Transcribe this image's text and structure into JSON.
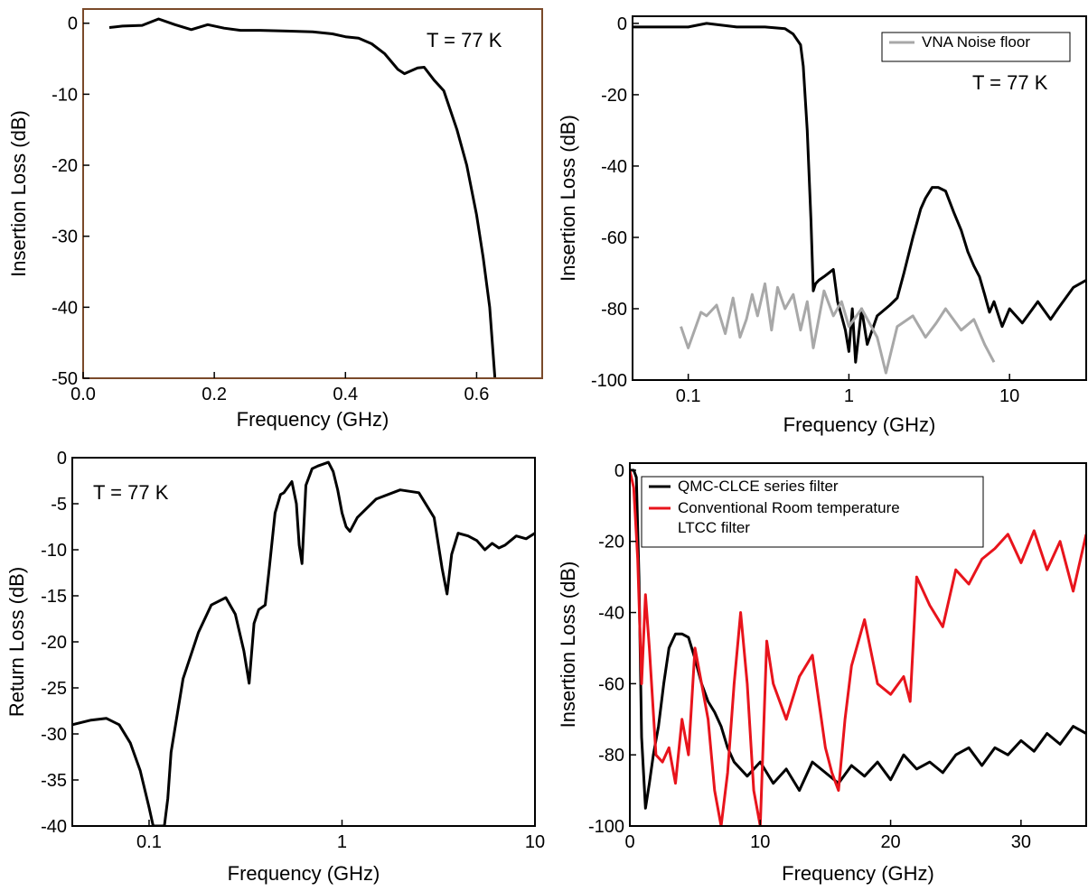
{
  "chart_data": [
    {
      "type": "line",
      "panel": "top-left",
      "xlabel": "Frequency (GHz)",
      "ylabel": "Insertion Loss (dB)",
      "xscale": "linear",
      "xlim": [
        0.0,
        0.7
      ],
      "ylim": [
        -50,
        2
      ],
      "xticks": [
        0.0,
        0.2,
        0.4,
        0.6
      ],
      "xtick_labels": [
        "0.0",
        "0.2",
        "0.4",
        "0.6"
      ],
      "yticks": [
        0,
        -10,
        -20,
        -30,
        -40,
        -50
      ],
      "ytick_labels": [
        "0",
        "-10",
        "-20",
        "-30",
        "-40",
        "-50"
      ],
      "annotation": "T = 77 K",
      "frame_color": "#7a4a2a",
      "series": [
        {
          "color": "#000000",
          "x": [
            0.04,
            0.06,
            0.09,
            0.115,
            0.14,
            0.165,
            0.19,
            0.215,
            0.24,
            0.27,
            0.31,
            0.35,
            0.38,
            0.4,
            0.42,
            0.44,
            0.46,
            0.48,
            0.49,
            0.51,
            0.52,
            0.535,
            0.55,
            0.57,
            0.585,
            0.6,
            0.61,
            0.62,
            0.628
          ],
          "y": [
            -0.6,
            -0.4,
            -0.3,
            0.6,
            -0.2,
            -0.9,
            -0.2,
            -0.7,
            -1.0,
            -1.0,
            -1.1,
            -1.2,
            -1.5,
            -1.9,
            -2.1,
            -2.9,
            -4.3,
            -6.5,
            -7.1,
            -6.3,
            -6.2,
            -8.0,
            -9.5,
            -15.0,
            -20.0,
            -27.0,
            -33.0,
            -40.0,
            -50.0
          ]
        }
      ]
    },
    {
      "type": "line",
      "panel": "top-right",
      "xlabel": "Frequency (GHz)",
      "ylabel": "Insertion Loss (dB)",
      "xscale": "log",
      "xlim": [
        0.045,
        30
      ],
      "ylim": [
        -100,
        2
      ],
      "xticks": [
        0.1,
        1,
        10
      ],
      "xtick_labels": [
        "0.1",
        "1",
        "10"
      ],
      "yticks": [
        0,
        -20,
        -40,
        -60,
        -80,
        -100
      ],
      "ytick_labels": [
        "0",
        "-20",
        "-40",
        "-60",
        "-80",
        "-100"
      ],
      "annotation": "T = 77 K",
      "legend": "top-right",
      "series": [
        {
          "name": "",
          "color": "#000000",
          "x": [
            0.045,
            0.1,
            0.13,
            0.2,
            0.3,
            0.4,
            0.45,
            0.5,
            0.52,
            0.55,
            0.58,
            0.6,
            0.62,
            0.65,
            0.7,
            0.8,
            0.85,
            0.9,
            0.95,
            1.0,
            1.05,
            1.1,
            1.2,
            1.3,
            1.5,
            1.8,
            2.0,
            2.2,
            2.5,
            2.8,
            3.0,
            3.3,
            3.6,
            4.0,
            4.5,
            5.0,
            5.5,
            6.0,
            6.5,
            7.0,
            7.5,
            8.0,
            9.0,
            10,
            12,
            15,
            18,
            20,
            25,
            30
          ],
          "y": [
            -1,
            -1,
            0,
            -1,
            -1,
            -1.5,
            -3,
            -6,
            -12,
            -30,
            -55,
            -75,
            -73,
            -72,
            -71,
            -69,
            -78,
            -82,
            -86,
            -92,
            -80,
            -95,
            -80,
            -90,
            -82,
            -79,
            -77,
            -70,
            -60,
            -52,
            -49,
            -46,
            -46,
            -47,
            -53,
            -58,
            -64,
            -68,
            -71,
            -76,
            -81,
            -78,
            -85,
            -80,
            -84,
            -78,
            -83,
            -80,
            -74,
            -72
          ]
        },
        {
          "name": "VNA Noise floor",
          "color": "#a8a8a8",
          "x": [
            0.09,
            0.1,
            0.12,
            0.13,
            0.15,
            0.17,
            0.19,
            0.21,
            0.23,
            0.25,
            0.27,
            0.3,
            0.33,
            0.36,
            0.4,
            0.45,
            0.5,
            0.55,
            0.6,
            0.7,
            0.8,
            0.9,
            1.0,
            1.2,
            1.5,
            1.7,
            2.0,
            2.5,
            3.0,
            3.5,
            4.0,
            5.0,
            6.0,
            7.0,
            8.0
          ],
          "y": [
            -85,
            -91,
            -81,
            -82,
            -79,
            -87,
            -77,
            -88,
            -83,
            -76,
            -82,
            -73,
            -86,
            -74,
            -80,
            -76,
            -86,
            -78,
            -91,
            -75,
            -82,
            -78,
            -85,
            -80,
            -88,
            -98,
            -85,
            -82,
            -88,
            -84,
            -80,
            -86,
            -83,
            -90,
            -95
          ]
        }
      ]
    },
    {
      "type": "line",
      "panel": "bottom-left",
      "xlabel": "Frequency (GHz)",
      "ylabel": "Return Loss (dB)",
      "xscale": "log",
      "xlim": [
        0.04,
        10
      ],
      "ylim": [
        -40,
        0
      ],
      "xticks": [
        0.1,
        1,
        10
      ],
      "xtick_labels": [
        "0.1",
        "1",
        "10"
      ],
      "yticks": [
        0,
        -5,
        -10,
        -15,
        -20,
        -25,
        -30,
        -35,
        -40
      ],
      "ytick_labels": [
        "0",
        "-5",
        "-10",
        "-15",
        "-20",
        "-25",
        "-30",
        "-35",
        "-40"
      ],
      "annotation": "T = 77 K",
      "series": [
        {
          "color": "#000000",
          "x": [
            0.04,
            0.05,
            0.06,
            0.07,
            0.08,
            0.09,
            0.1,
            0.105,
            0.11,
            0.12,
            0.125,
            0.13,
            0.15,
            0.18,
            0.21,
            0.25,
            0.28,
            0.31,
            0.33,
            0.35,
            0.37,
            0.4,
            0.42,
            0.45,
            0.48,
            0.5,
            0.55,
            0.58,
            0.6,
            0.62,
            0.65,
            0.7,
            0.75,
            0.8,
            0.85,
            0.9,
            0.95,
            1.0,
            1.05,
            1.1,
            1.2,
            1.5,
            2.0,
            2.5,
            3.0,
            3.3,
            3.5,
            3.7,
            4.0,
            4.5,
            5.0,
            5.5,
            6.0,
            6.5,
            7.0,
            8.0,
            9.0,
            10.0
          ],
          "y": [
            -29,
            -28.5,
            -28.3,
            -29,
            -31,
            -34,
            -38,
            -40,
            -40,
            -40,
            -37,
            -32,
            -24,
            -19,
            -16,
            -15.2,
            -17,
            -21,
            -24.5,
            -18,
            -16.5,
            -16,
            -12,
            -6,
            -4,
            -3.8,
            -2.6,
            -5,
            -9.5,
            -11.5,
            -3,
            -1.2,
            -0.9,
            -0.7,
            -0.5,
            -1.5,
            -3.5,
            -6,
            -7.5,
            -8,
            -6.5,
            -4.5,
            -3.5,
            -3.8,
            -6.5,
            -12,
            -14.8,
            -10.5,
            -8.2,
            -8.5,
            -9,
            -10,
            -9.3,
            -9.8,
            -9.5,
            -8.5,
            -8.8,
            -8.2
          ]
        }
      ]
    },
    {
      "type": "line",
      "panel": "bottom-right",
      "xlabel": "Frequency (GHz)",
      "ylabel": "Insertion Loss (dB)",
      "xscale": "linear",
      "xlim": [
        0,
        35
      ],
      "ylim": [
        -100,
        2
      ],
      "xticks": [
        0,
        10,
        20,
        30
      ],
      "xtick_labels": [
        "0",
        "10",
        "20",
        "30"
      ],
      "yticks": [
        0,
        -20,
        -40,
        -60,
        -80,
        -100
      ],
      "ytick_labels": [
        "0",
        "-20",
        "-40",
        "-60",
        "-80",
        "-100"
      ],
      "legend": "top-left",
      "series": [
        {
          "name": "QMC-CLCE series filter",
          "color": "#000000",
          "x": [
            0,
            0.3,
            0.5,
            0.7,
            0.9,
            1.2,
            1.5,
            1.8,
            2.2,
            2.6,
            3.0,
            3.5,
            4.0,
            4.5,
            5.0,
            5.5,
            6.0,
            6.5,
            7.0,
            7.5,
            8.0,
            9,
            10,
            11,
            12,
            13,
            14,
            15,
            16,
            17,
            18,
            19,
            20,
            21,
            22,
            23,
            24,
            25,
            26,
            27,
            28,
            29,
            30,
            31,
            32,
            33,
            34,
            35
          ],
          "y": [
            0,
            0,
            -2,
            -30,
            -75,
            -95,
            -88,
            -80,
            -72,
            -60,
            -50,
            -46,
            -46,
            -47,
            -53,
            -60,
            -65,
            -68,
            -72,
            -78,
            -82,
            -86,
            -82,
            -88,
            -84,
            -90,
            -82,
            -85,
            -88,
            -83,
            -86,
            -82,
            -87,
            -80,
            -84,
            -82,
            -85,
            -80,
            -78,
            -83,
            -78,
            -80,
            -76,
            -79,
            -74,
            -77,
            -72,
            -74
          ]
        },
        {
          "name": "Conventional Room temperature LTCC filter",
          "color": "#e8141c",
          "x": [
            0,
            0.3,
            0.6,
            0.9,
            1.2,
            1.5,
            2.0,
            2.5,
            3.0,
            3.5,
            4.0,
            4.5,
            5.0,
            5.5,
            6.0,
            6.5,
            7.0,
            7.5,
            8.0,
            8.5,
            9.0,
            9.5,
            10.0,
            10.5,
            11,
            12,
            13,
            14,
            15,
            15.5,
            16,
            16.5,
            17,
            18,
            19,
            20,
            21,
            21.5,
            22,
            23,
            24,
            25,
            26,
            27,
            28,
            29,
            30,
            31,
            32,
            33,
            34,
            35
          ],
          "y": [
            0,
            -5,
            -25,
            -60,
            -35,
            -50,
            -80,
            -82,
            -78,
            -88,
            -70,
            -80,
            -50,
            -60,
            -70,
            -90,
            -100,
            -85,
            -60,
            -40,
            -60,
            -90,
            -100,
            -48,
            -60,
            -70,
            -58,
            -52,
            -78,
            -85,
            -90,
            -70,
            -55,
            -42,
            -60,
            -63,
            -58,
            -65,
            -30,
            -38,
            -44,
            -28,
            -32,
            -25,
            -22,
            -18,
            -26,
            -17,
            -28,
            -20,
            -34,
            -18
          ]
        }
      ]
    }
  ]
}
